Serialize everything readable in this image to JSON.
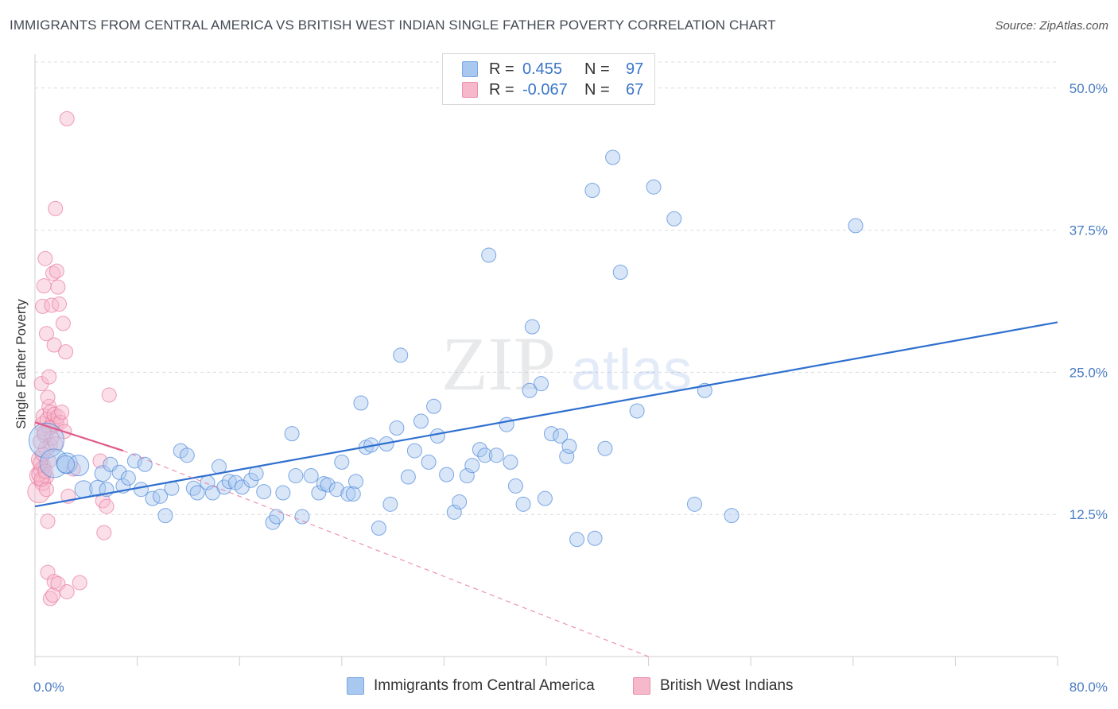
{
  "title": "IMMIGRANTS FROM CENTRAL AMERICA VS BRITISH WEST INDIAN SINGLE FATHER POVERTY CORRELATION CHART",
  "source": "Source: ZipAtlas.com",
  "watermark": {
    "zip": "ZIP",
    "atlas": "atlas"
  },
  "legend": {
    "rows": [
      {
        "r_label": "R =",
        "r_value": "0.455",
        "n_label": "N =",
        "n_value": "97",
        "color": "#a9c8f0"
      },
      {
        "r_label": "R =",
        "r_value": "-0.067",
        "n_label": "N =",
        "n_value": "67",
        "color": "#f6b8cb"
      }
    ]
  },
  "bottom_legend": [
    {
      "label": "Immigrants from Central America",
      "color": "#a9c8f0"
    },
    {
      "label": "British West Indians",
      "color": "#f6b8cb"
    }
  ],
  "colors": {
    "blue": "#4a86d8",
    "blue_fill": "#a9c8f0",
    "pink": "#e8789c",
    "pink_fill": "#f6b8cb",
    "tick_text": "#4a7cc4",
    "grid": "#dcdcdc"
  },
  "chart_data": {
    "type": "scatter",
    "ylabel": "Single Father Poverty",
    "xlim": [
      0,
      80
    ],
    "ylim": [
      0,
      52.5
    ],
    "y_ticks": [
      "12.5%",
      "25.0%",
      "37.5%",
      "50.0%"
    ],
    "y_tick_values": [
      12.5,
      25.0,
      37.5,
      50.0
    ],
    "x_tick_labels": [
      "0.0%",
      "80.0%"
    ],
    "x_tick_label_values": [
      0,
      80
    ],
    "grid": true,
    "series": [
      {
        "name": "Immigrants from Central America",
        "trend": {
          "x": [
            0,
            80
          ],
          "y": [
            13.2,
            29.4
          ]
        },
        "points": [
          [
            0.9,
            19.0,
            22
          ],
          [
            1.5,
            17.0,
            18
          ],
          [
            2.5,
            17.0,
            13
          ],
          [
            3.4,
            16.8,
            13
          ],
          [
            3.8,
            14.7,
            11
          ],
          [
            4.9,
            14.8,
            10
          ],
          [
            5.3,
            16.1,
            10
          ],
          [
            5.9,
            16.9,
            9
          ],
          [
            6.6,
            16.2,
            9
          ],
          [
            6.9,
            15.0,
            9
          ],
          [
            7.3,
            15.7,
            9
          ],
          [
            7.8,
            17.2,
            9
          ],
          [
            8.3,
            14.7,
            9
          ],
          [
            8.6,
            16.9,
            9
          ],
          [
            9.2,
            13.9,
            9
          ],
          [
            9.8,
            14.1,
            9
          ],
          [
            10.2,
            12.4,
            9
          ],
          [
            10.7,
            14.8,
            9
          ],
          [
            11.4,
            18.1,
            9
          ],
          [
            11.9,
            17.7,
            9
          ],
          [
            12.4,
            14.8,
            9
          ],
          [
            12.7,
            14.4,
            9
          ],
          [
            13.5,
            15.3,
            9
          ],
          [
            13.9,
            14.4,
            9
          ],
          [
            14.4,
            16.7,
            9
          ],
          [
            14.8,
            14.9,
            9
          ],
          [
            15.2,
            15.4,
            9
          ],
          [
            15.7,
            15.3,
            9
          ],
          [
            16.2,
            14.9,
            9
          ],
          [
            16.9,
            15.5,
            9
          ],
          [
            17.3,
            16.1,
            9
          ],
          [
            17.9,
            14.5,
            9
          ],
          [
            18.6,
            11.8,
            9
          ],
          [
            18.9,
            12.3,
            9
          ],
          [
            19.4,
            14.4,
            9
          ],
          [
            20.1,
            19.6,
            9
          ],
          [
            20.4,
            15.9,
            9
          ],
          [
            20.9,
            12.3,
            9
          ],
          [
            21.6,
            15.9,
            9
          ],
          [
            22.2,
            14.4,
            9
          ],
          [
            22.6,
            15.2,
            9
          ],
          [
            22.9,
            15.1,
            9
          ],
          [
            23.6,
            14.7,
            9
          ],
          [
            24.0,
            17.1,
            9
          ],
          [
            24.5,
            14.3,
            9
          ],
          [
            25.1,
            15.4,
            9
          ],
          [
            25.5,
            22.3,
            9
          ],
          [
            25.9,
            18.4,
            9
          ],
          [
            26.3,
            18.6,
            9
          ],
          [
            26.9,
            11.3,
            9
          ],
          [
            27.5,
            18.7,
            9
          ],
          [
            27.8,
            13.4,
            9
          ],
          [
            28.3,
            20.1,
            9
          ],
          [
            28.6,
            26.5,
            9
          ],
          [
            29.7,
            18.1,
            9
          ],
          [
            30.2,
            20.7,
            9
          ],
          [
            30.8,
            17.1,
            9
          ],
          [
            31.2,
            22.0,
            9
          ],
          [
            31.5,
            19.4,
            9
          ],
          [
            32.2,
            16.0,
            9
          ],
          [
            32.8,
            12.7,
            9
          ],
          [
            33.2,
            13.6,
            9
          ],
          [
            33.8,
            15.9,
            9
          ],
          [
            34.2,
            16.8,
            9
          ],
          [
            34.8,
            18.2,
            9
          ],
          [
            35.2,
            17.7,
            9
          ],
          [
            35.5,
            35.3,
            9
          ],
          [
            36.1,
            17.7,
            9
          ],
          [
            36.9,
            20.4,
            9
          ],
          [
            37.2,
            17.1,
            9
          ],
          [
            37.6,
            15.0,
            9
          ],
          [
            38.2,
            13.4,
            9
          ],
          [
            38.7,
            23.4,
            9
          ],
          [
            38.9,
            29.0,
            9
          ],
          [
            39.6,
            24.0,
            9
          ],
          [
            39.9,
            13.9,
            9
          ],
          [
            40.4,
            19.6,
            9
          ],
          [
            41.1,
            19.4,
            9
          ],
          [
            41.6,
            17.6,
            9
          ],
          [
            41.8,
            18.5,
            9
          ],
          [
            42.4,
            10.3,
            9
          ],
          [
            43.6,
            41.0,
            9
          ],
          [
            43.8,
            10.4,
            9
          ],
          [
            44.6,
            18.3,
            9
          ],
          [
            45.2,
            43.9,
            9
          ],
          [
            45.8,
            33.8,
            9
          ],
          [
            47.1,
            21.6,
            9
          ],
          [
            48.4,
            41.3,
            9
          ],
          [
            50.0,
            38.5,
            9
          ],
          [
            51.6,
            13.4,
            9
          ],
          [
            52.4,
            23.4,
            9
          ],
          [
            54.5,
            12.4,
            9
          ],
          [
            64.2,
            37.9,
            9
          ],
          [
            2.4,
            16.9,
            11
          ],
          [
            5.6,
            14.7,
            9
          ],
          [
            24.9,
            14.3,
            9
          ],
          [
            29.2,
            15.8,
            9
          ]
        ]
      },
      {
        "name": "British West Indians",
        "trend": {
          "x": [
            0,
            6.9
          ],
          "y": [
            20.6,
            18.1
          ]
        },
        "trend_dashed": {
          "x": [
            6.9,
            48
          ],
          "y": [
            18.1,
            0
          ]
        },
        "points": [
          [
            0.3,
            14.5,
            14
          ],
          [
            0.4,
            15.9,
            13
          ],
          [
            0.4,
            17.3,
            11
          ],
          [
            0.5,
            16.4,
            10
          ],
          [
            0.6,
            15.3,
            10
          ],
          [
            0.6,
            20.4,
            10
          ],
          [
            0.7,
            21.1,
            10
          ],
          [
            0.8,
            19.5,
            10
          ],
          [
            0.9,
            18.3,
            10
          ],
          [
            1.0,
            20.8,
            10
          ],
          [
            1.1,
            22.0,
            9
          ],
          [
            1.2,
            21.5,
            9
          ],
          [
            1.3,
            20.2,
            9
          ],
          [
            0.5,
            24.0,
            9
          ],
          [
            0.6,
            30.8,
            9
          ],
          [
            0.7,
            32.6,
            9
          ],
          [
            0.8,
            35.0,
            9
          ],
          [
            0.9,
            28.4,
            9
          ],
          [
            1.0,
            22.8,
            9
          ],
          [
            1.1,
            24.6,
            9
          ],
          [
            1.3,
            30.9,
            9
          ],
          [
            1.4,
            33.7,
            9
          ],
          [
            1.5,
            27.4,
            9
          ],
          [
            1.6,
            39.4,
            9
          ],
          [
            1.7,
            33.9,
            9
          ],
          [
            1.8,
            32.5,
            9
          ],
          [
            1.9,
            31.0,
            9
          ],
          [
            2.2,
            29.3,
            9
          ],
          [
            2.4,
            26.8,
            9
          ],
          [
            2.5,
            47.3,
            9
          ],
          [
            0.7,
            16.7,
            9
          ],
          [
            0.9,
            15.8,
            9
          ],
          [
            1.1,
            17.2,
            9
          ],
          [
            1.2,
            18.6,
            9
          ],
          [
            1.4,
            20.7,
            9
          ],
          [
            1.5,
            21.3,
            9
          ],
          [
            1.7,
            20.5,
            9
          ],
          [
            1.8,
            21.1,
            9
          ],
          [
            2.0,
            20.6,
            9
          ],
          [
            2.1,
            21.5,
            9
          ],
          [
            2.6,
            14.1,
            9
          ],
          [
            3.0,
            16.5,
            9
          ],
          [
            5.1,
            17.2,
            9
          ],
          [
            5.3,
            13.7,
            9
          ],
          [
            5.4,
            10.9,
            9
          ],
          [
            5.6,
            13.2,
            9
          ],
          [
            5.8,
            23.0,
            9
          ],
          [
            1.0,
            11.9,
            9
          ],
          [
            1.0,
            7.4,
            9
          ],
          [
            1.2,
            5.1,
            9
          ],
          [
            1.4,
            5.4,
            9
          ],
          [
            1.5,
            6.6,
            9
          ],
          [
            1.8,
            6.4,
            9
          ],
          [
            2.5,
            5.7,
            9
          ],
          [
            3.5,
            6.5,
            9
          ],
          [
            0.3,
            16.0,
            9
          ],
          [
            0.4,
            17.0,
            9
          ],
          [
            0.5,
            15.6,
            9
          ],
          [
            0.6,
            17.8,
            9
          ],
          [
            0.8,
            16.3,
            9
          ],
          [
            0.9,
            14.7,
            9
          ],
          [
            1.1,
            20.1,
            9
          ],
          [
            1.3,
            19.2,
            9
          ],
          [
            1.6,
            18.7,
            9
          ],
          [
            2.3,
            19.8,
            9
          ],
          [
            0.4,
            18.9,
            9
          ],
          [
            0.7,
            19.7,
            9
          ]
        ]
      }
    ]
  }
}
